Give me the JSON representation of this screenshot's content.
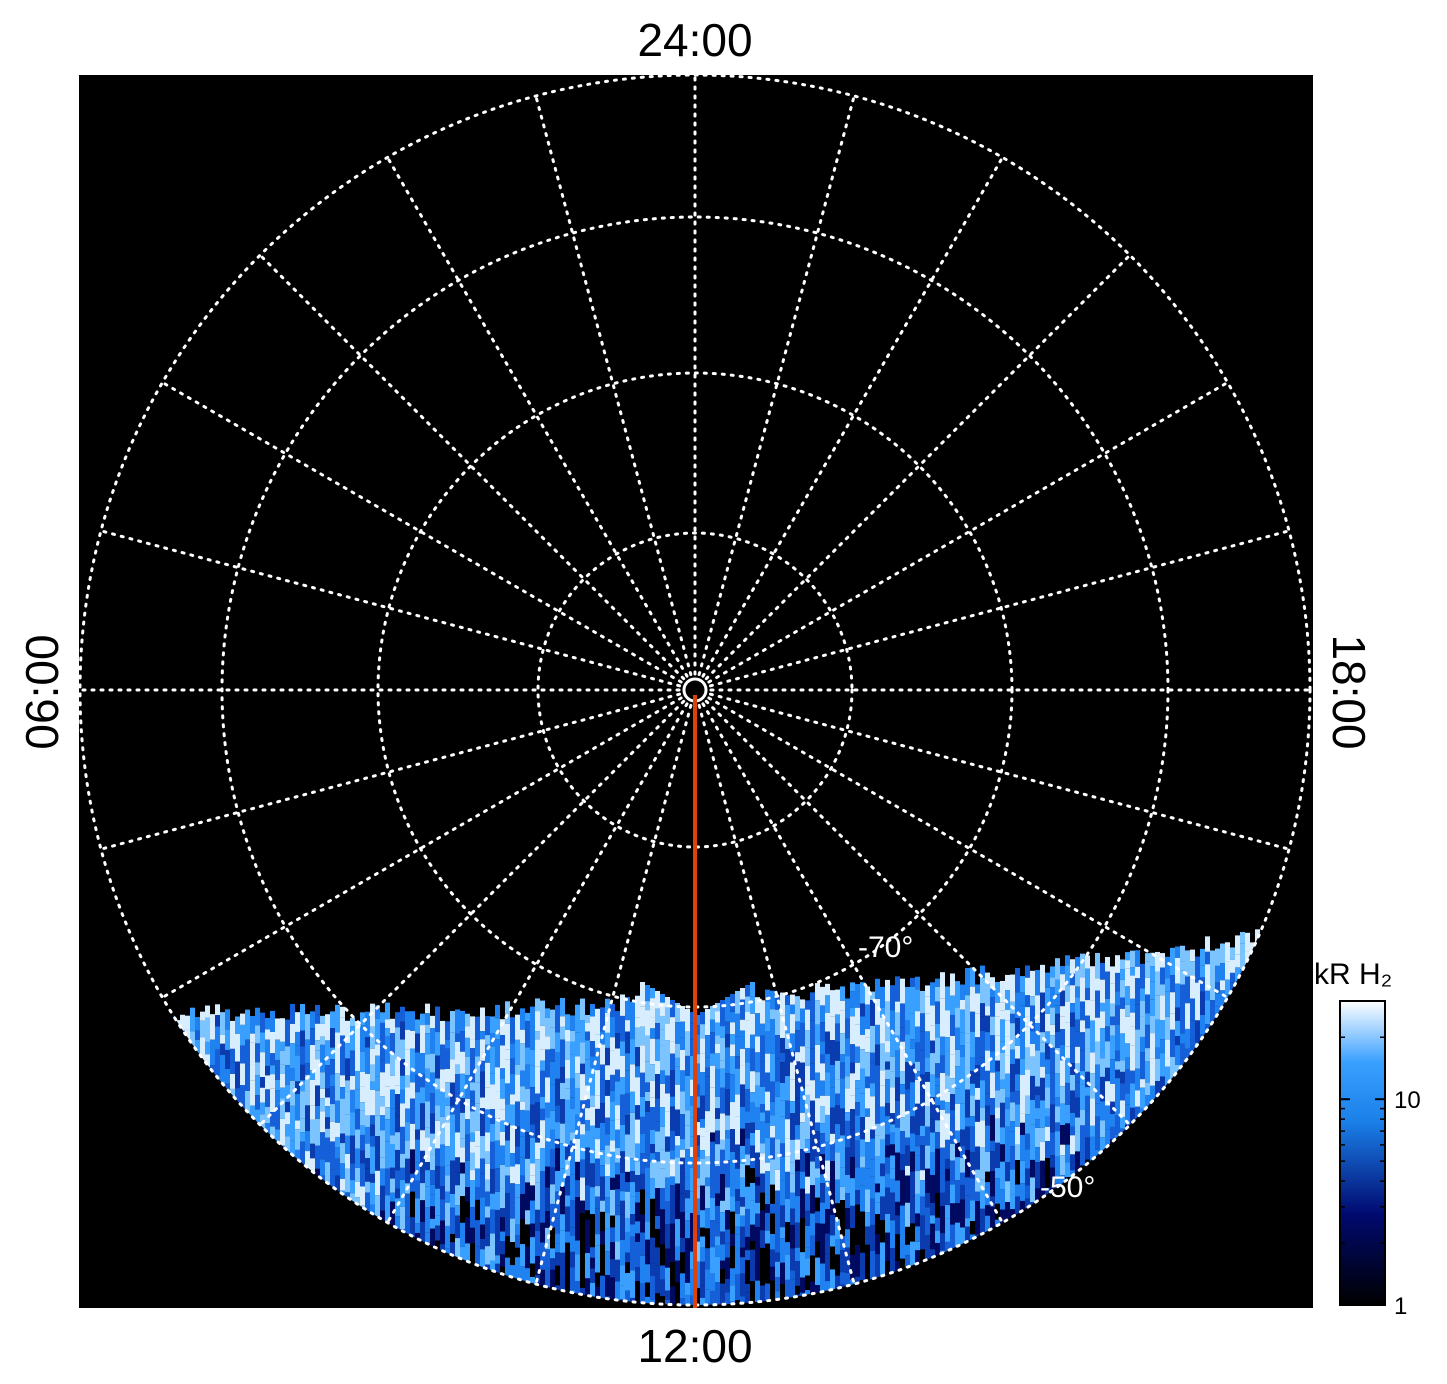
{
  "labels": {
    "top": "24:00",
    "left": "06:00",
    "right": "18:00",
    "bottom": "12:00"
  },
  "latitude_labels": [
    "-70°",
    "-50°"
  ],
  "colorbar": {
    "label": "kR H₂",
    "scale": "log",
    "range": [
      1,
      30
    ],
    "ticks": [
      1,
      10
    ]
  }
}
